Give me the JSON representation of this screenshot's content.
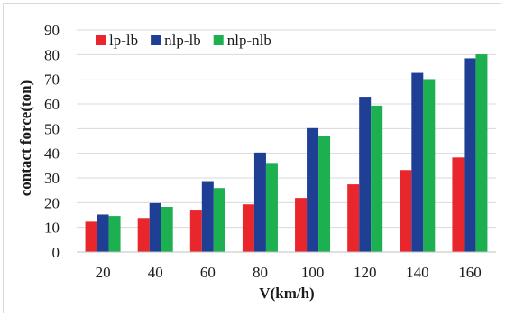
{
  "chart_data": {
    "type": "bar",
    "categories": [
      "20",
      "40",
      "60",
      "80",
      "100",
      "120",
      "140",
      "160"
    ],
    "series": [
      {
        "name": "lp-lb",
        "color": "#e8262b",
        "values": [
          12.3,
          13.8,
          16.8,
          19.3,
          21.9,
          27.4,
          33.2,
          38.3
        ]
      },
      {
        "name": "nlp-lb",
        "color": "#1f3f94",
        "values": [
          15.2,
          19.8,
          28.7,
          40.3,
          50.2,
          62.9,
          72.6,
          78.5
        ]
      },
      {
        "name": "nlp-nlb",
        "color": "#1db050",
        "values": [
          14.6,
          18.3,
          25.9,
          36.1,
          46.9,
          59.3,
          69.7,
          80.1
        ]
      }
    ],
    "xlabel": "V(km/h)",
    "ylabel": "contact force(ton)",
    "ylim": [
      0,
      90
    ],
    "yticks": [
      0,
      10,
      20,
      30,
      40,
      50,
      60,
      70,
      80,
      90
    ],
    "grid": true,
    "legend_position": "top-left"
  }
}
